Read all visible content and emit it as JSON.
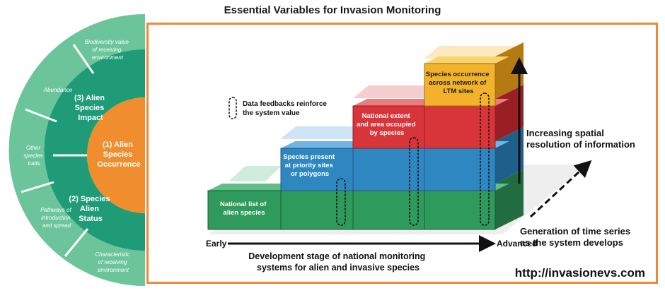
{
  "title": "Essential Variables for Invasion Monitoring",
  "rings": {
    "center": [
      "(1) Alien",
      "Species",
      "Occurrence"
    ],
    "impact": [
      "(3) Alien",
      "Species",
      "Impact"
    ],
    "status": [
      "(2) Species",
      "Alien",
      "Status"
    ]
  },
  "outer_labels": {
    "biodiversity": [
      "Biodiversity value",
      "of receiving",
      "environment"
    ],
    "abundance": [
      "Abundance"
    ],
    "other_traits": [
      "Other",
      "species",
      "traits"
    ],
    "pathways": [
      "Pathways of",
      "introduction",
      "and spread"
    ],
    "characteristic": [
      "Characteristic",
      "of receiving",
      "environment"
    ]
  },
  "boxes": {
    "national_list": [
      "National list of",
      "alien species"
    ],
    "priority_sites": [
      "Species present",
      "at priority sites",
      "or polygons"
    ],
    "national_extent": [
      "National extent",
      "and area occupied",
      "by species"
    ],
    "ltm_sites": [
      "Species occurrence",
      "across network of",
      "LTM sites"
    ]
  },
  "feedback_legend": [
    "Data feedbacks reinforce",
    "the system value"
  ],
  "spatial_label": [
    "Increasing spatial",
    "resolution of information"
  ],
  "time_label": [
    "Generation of time series",
    "as the system develops"
  ],
  "axis": {
    "early": "Early",
    "advanced": "Advanced",
    "caption": [
      "Development stage of national monitoring",
      "systems for alien and invasive species"
    ]
  },
  "url": "http://invasionevs.com",
  "colors": {
    "green": "#2e9a5b",
    "blue": "#2f87c1",
    "red": "#d8353b",
    "yellow": "#f2b32a",
    "frame": "#ec8a36",
    "ring_outer": "#6cc59a",
    "ring_mid": "#1f9b78",
    "core": "#f08d2c"
  }
}
